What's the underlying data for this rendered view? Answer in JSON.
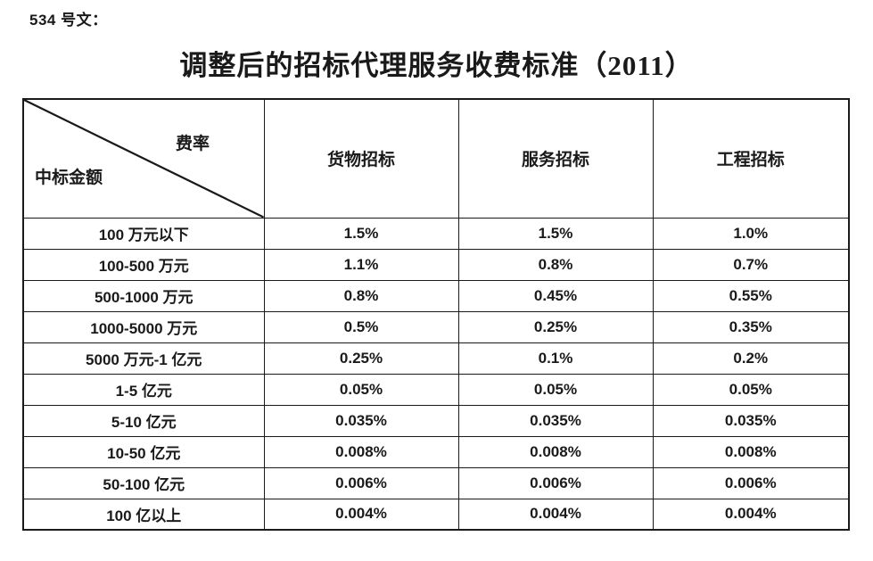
{
  "page": {
    "doc_label": "534 号文：",
    "title": "调整后的招标代理服务收费标准（2011）"
  },
  "table": {
    "corner": {
      "top_right_label": "费率",
      "bottom_left_label": "中标金额"
    },
    "columns": [
      "货物招标",
      "服务招标",
      "工程招标"
    ],
    "rows": [
      {
        "label": "100 万元以下",
        "values": [
          "1.5%",
          "1.5%",
          "1.0%"
        ]
      },
      {
        "label": "100-500 万元",
        "values": [
          "1.1%",
          "0.8%",
          "0.7%"
        ]
      },
      {
        "label": "500-1000 万元",
        "values": [
          "0.8%",
          "0.45%",
          "0.55%"
        ]
      },
      {
        "label": "1000-5000 万元",
        "values": [
          "0.5%",
          "0.25%",
          "0.35%"
        ]
      },
      {
        "label": "5000 万元-1 亿元",
        "values": [
          "0.25%",
          "0.1%",
          "0.2%"
        ]
      },
      {
        "label": "1-5 亿元",
        "values": [
          "0.05%",
          "0.05%",
          "0.05%"
        ]
      },
      {
        "label": "5-10 亿元",
        "values": [
          "0.035%",
          "0.035%",
          "0.035%"
        ]
      },
      {
        "label": "10-50 亿元",
        "values": [
          "0.008%",
          "0.008%",
          "0.008%"
        ]
      },
      {
        "label": "50-100 亿元",
        "values": [
          "0.006%",
          "0.006%",
          "0.006%"
        ]
      },
      {
        "label": "100 亿以上",
        "values": [
          "0.004%",
          "0.004%",
          "0.004%"
        ]
      }
    ]
  },
  "colors": {
    "text": "#1a1a1a",
    "border": "#1a1a1a",
    "background": "#ffffff"
  }
}
